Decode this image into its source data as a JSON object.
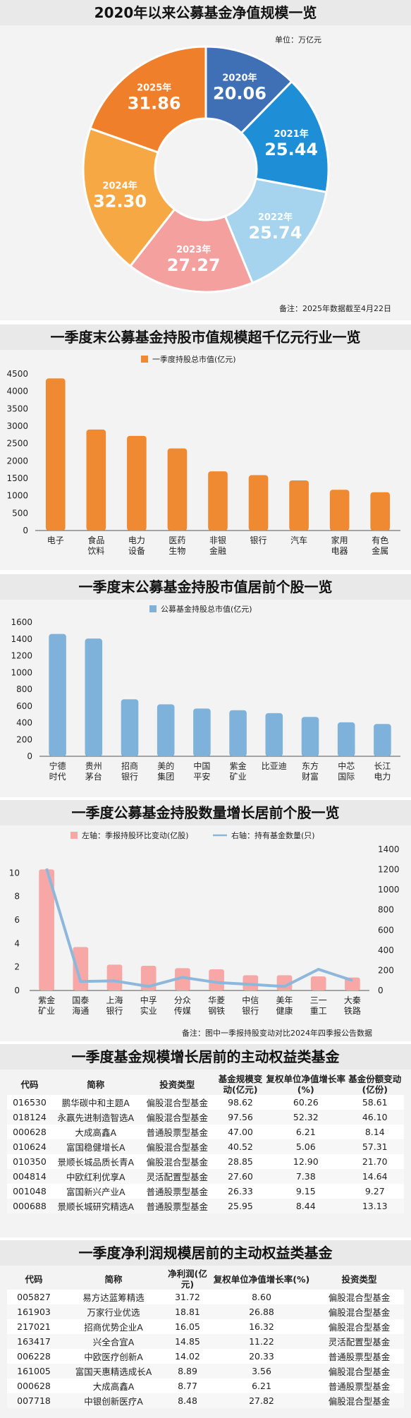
{
  "colors": {
    "orange": "#ef8a33",
    "blue": "#7fb2da",
    "pink": "#f7a8a6",
    "line": "#8db8dc",
    "donut": [
      "#3f6fb5",
      "#1e8fd6",
      "#a6d4ee",
      "#f3a09f",
      "#f6a844",
      "#ef7f2b"
    ]
  },
  "s1": {
    "title": "2020年以来公募基金净值规模一览",
    "unit": "单位：万亿元",
    "note": "备注：2025年数据截至4月22日"
  },
  "s2": {
    "title": "一季度末公募基金持股市值规模超千亿元行业一览"
  },
  "s3": {
    "title": "一季度末公募基金持股市值居前个股一览"
  },
  "s4": {
    "title": "一季度公募基金持股数量增长居前个股一览",
    "note": "备注：图中一季报持股变动对比2024年四季报公告数据"
  },
  "s5": {
    "title": "一季度基金规模增长居前的主动权益类基金",
    "headers": [
      "代码",
      "简称",
      "投资类型",
      "基金规模变动(亿元)",
      "复权单位净值增长率(%)",
      "基金份额变动(亿份)"
    ],
    "rows": [
      [
        "016530",
        "鹏华碳中和主题A",
        "偏股混合型基金",
        "98.62",
        "60.26",
        "58.61"
      ],
      [
        "018124",
        "永赢先进制造智选A",
        "偏股混合型基金",
        "97.56",
        "52.32",
        "46.10"
      ],
      [
        "000628",
        "大成高鑫A",
        "普通股票型基金",
        "47.00",
        "6.21",
        "8.14"
      ],
      [
        "010624",
        "富国稳健增长A",
        "偏股混合型基金",
        "40.52",
        "5.06",
        "57.31"
      ],
      [
        "010350",
        "景顺长城品质长青A",
        "偏股混合型基金",
        "28.85",
        "12.90",
        "21.70"
      ],
      [
        "004814",
        "中欧红利优享A",
        "灵活配置型基金",
        "27.60",
        "7.38",
        "14.64"
      ],
      [
        "001048",
        "富国新兴产业A",
        "普通股票型基金",
        "26.33",
        "9.15",
        "9.27"
      ],
      [
        "000688",
        "景顺长城研究精选A",
        "普通股票型基金",
        "25.95",
        "8.44",
        "13.13"
      ]
    ]
  },
  "s6": {
    "title": "一季度净利润规模居前的主动权益类基金",
    "headers": [
      "代码",
      "简称",
      "净利润(亿元)",
      "复权单位净值增长率(%)",
      "投资类型"
    ],
    "rows": [
      [
        "005827",
        "易方达蓝筹精选",
        "31.72",
        "8.60",
        "偏股混合型基金"
      ],
      [
        "161903",
        "万家行业优选",
        "18.81",
        "26.88",
        "偏股混合型基金"
      ],
      [
        "217021",
        "招商优势企业A",
        "16.05",
        "16.32",
        "偏股混合型基金"
      ],
      [
        "163417",
        "兴全合宜A",
        "14.85",
        "11.22",
        "灵活配置型基金"
      ],
      [
        "006228",
        "中欧医疗创新A",
        "14.02",
        "20.33",
        "普通股票型基金"
      ],
      [
        "161005",
        "富国天惠精选成长A",
        "8.89",
        "3.56",
        "偏股混合型基金"
      ],
      [
        "000628",
        "大成高鑫A",
        "8.77",
        "6.21",
        "普通股票型基金"
      ],
      [
        "007718",
        "中银创新医疗A",
        "8.48",
        "27.82",
        "偏股混合型基金"
      ]
    ]
  },
  "chart_data": [
    {
      "type": "pie",
      "title": "2020年以来公募基金净值规模一览",
      "unit": "万亿元",
      "categories": [
        "2020年",
        "2021年",
        "2022年",
        "2023年",
        "2024年",
        "2025年"
      ],
      "values": [
        20.06,
        25.44,
        25.74,
        27.27,
        32.3,
        31.86
      ],
      "labels": [
        "20.06",
        "25.44",
        "25.74",
        "27.27",
        "32.30",
        "31.86"
      ]
    },
    {
      "type": "bar",
      "title": "一季度末公募基金持股市值规模超千亿元行业一览",
      "categories": [
        "电子",
        "食品\n饮料",
        "电力\n设备",
        "医药\n生物",
        "非银\n金融",
        "银行",
        "汽车",
        "家用\n电器",
        "有色\n金属"
      ],
      "series": [
        {
          "name": "一季度持股总市值(亿元)",
          "values": [
            4370,
            2900,
            2720,
            2360,
            1700,
            1590,
            1440,
            1170,
            1100
          ]
        }
      ],
      "ylim": [
        0,
        4500
      ],
      "yticks": [
        "0",
        "500",
        "1000",
        "1500",
        "2000",
        "2500",
        "3000",
        "3500",
        "4000",
        "4500"
      ]
    },
    {
      "type": "bar",
      "title": "一季度末公募基金持股市值居前个股一览",
      "categories": [
        "宁德\n时代",
        "贵州\n茅台",
        "招商\n银行",
        "美的\n集团",
        "中国\n平安",
        "紫金\n矿业",
        "比亚迪",
        "东方\n财富",
        "中芯\n国际",
        "长江\n电力"
      ],
      "series": [
        {
          "name": "公募基金持股总市值(亿元)",
          "values": [
            1460,
            1405,
            680,
            620,
            570,
            550,
            515,
            470,
            405,
            385
          ]
        }
      ],
      "ylim": [
        0,
        1600
      ],
      "yticks": [
        "0",
        "200",
        "400",
        "600",
        "800",
        "1000",
        "1200",
        "1400",
        "1600"
      ]
    },
    {
      "type": "bar",
      "title": "一季度公募基金持股数量增长居前个股一览",
      "categories": [
        "紫金\n矿业",
        "国泰\n海通",
        "上海\n银行",
        "中孚\n实业",
        "分众\n传媒",
        "华菱\n钢铁",
        "中信\n银行",
        "美年\n健康",
        "三一\n重工",
        "大秦\n铁路"
      ],
      "series": [
        {
          "name": "左轴：季报持股环比变动(亿股)",
          "values": [
            10.3,
            3.7,
            2.2,
            2.1,
            1.9,
            1.8,
            1.3,
            1.3,
            1.2,
            1.1
          ]
        },
        {
          "name": "右轴：持有基金数量(只)",
          "type": "line",
          "values": [
            1210,
            90,
            95,
            40,
            130,
            80,
            60,
            40,
            210,
            100
          ]
        }
      ],
      "ylim": [
        0,
        12
      ],
      "yticks": [
        "0",
        "2",
        "4",
        "6",
        "8",
        "10"
      ],
      "y2lim": [
        0,
        1400
      ],
      "y2ticks": [
        "0",
        "200",
        "400",
        "600",
        "800",
        "1000",
        "1200",
        "1400"
      ]
    }
  ]
}
